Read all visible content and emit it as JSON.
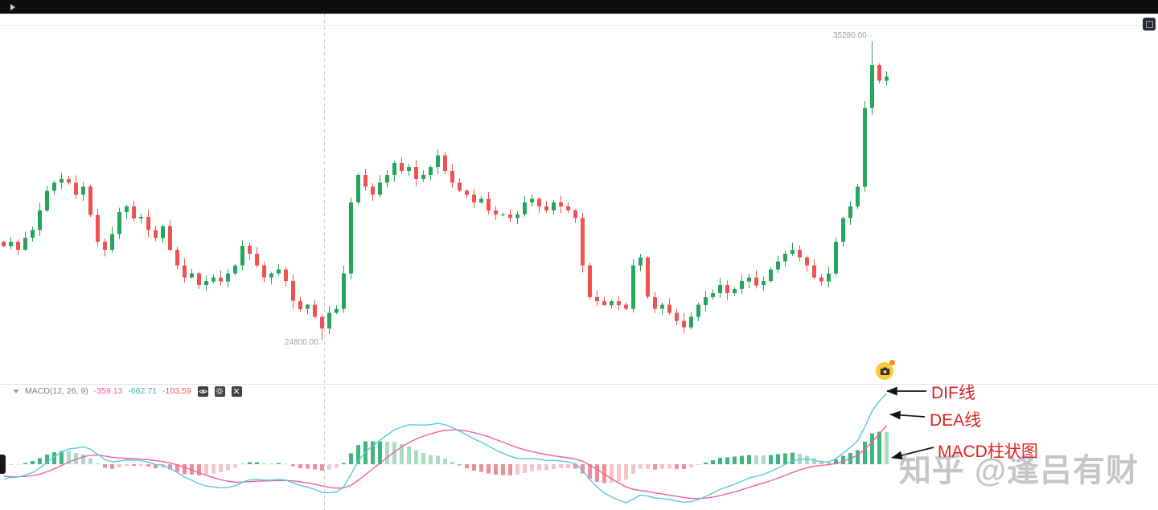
{
  "macd_pane": {
    "title": "MACD(12, 26, 9)",
    "values": [
      {
        "text": "-359.13",
        "color": "#e85aa0"
      },
      {
        "text": "-662.71",
        "color": "#2fb3a8"
      },
      {
        "text": "-103.59",
        "color": "#ef5350"
      }
    ],
    "icons": [
      "eye-icon",
      "gear-icon",
      "close-icon"
    ]
  },
  "annotations": {
    "dif_label": "DIF线",
    "dea_label": "DEA线",
    "hist_label": "MACD柱状图",
    "text_color": "#dd2121",
    "arrow_color": "#141414"
  },
  "watermark": {
    "text": "知乎 @逢吕有财"
  },
  "badges": {
    "camera": "snapshot-camera"
  },
  "chart_data": [
    {
      "type": "candlestick",
      "title": "",
      "x_unit": "bars",
      "ylim": [
        23500,
        35600
      ],
      "grid": false,
      "up_color": "#26a65c",
      "down_color": "#ef5350",
      "high_point": {
        "label": "35280.00",
        "value": 35280
      },
      "low_point": {
        "label": "24800.00",
        "value": 24800
      },
      "closes": [
        28100,
        28250,
        27970,
        28390,
        28660,
        29350,
        30040,
        30320,
        30450,
        30320,
        29900,
        30180,
        29200,
        28250,
        27970,
        28520,
        29290,
        29490,
        29075,
        29130,
        28660,
        28390,
        28800,
        27970,
        27420,
        27010,
        27150,
        26730,
        26870,
        27010,
        26870,
        27150,
        27420,
        28110,
        27830,
        27420,
        27010,
        27150,
        27290,
        26870,
        26180,
        25900,
        26040,
        25630,
        25210,
        25770,
        25900,
        27150,
        29630,
        30590,
        30180,
        29900,
        30320,
        30590,
        31010,
        30730,
        30870,
        30450,
        30590,
        30870,
        31280,
        30730,
        30320,
        30040,
        29900,
        29630,
        29760,
        29350,
        29210,
        29210,
        29080,
        29210,
        29630,
        29760,
        29490,
        29350,
        29630,
        29490,
        29350,
        29080,
        27420,
        26320,
        26180,
        26040,
        26180,
        26040,
        25900,
        27420,
        27700,
        26320,
        25900,
        26040,
        25770,
        25490,
        25260,
        25630,
        26040,
        26320,
        26460,
        26730,
        26460,
        26590,
        26870,
        27010,
        26730,
        26870,
        27290,
        27560,
        27830,
        27970,
        27700,
        27420,
        27010,
        26870,
        27150,
        28250,
        29080,
        29490,
        30180,
        32940,
        34450,
        33900,
        34040
      ]
    },
    {
      "type": "macd",
      "derived_from": "chart_data.0.closes",
      "params": {
        "fast": 12,
        "slow": 26,
        "signal": 9
      },
      "readout": {
        "value1": -359.13,
        "value2": -662.71,
        "value3": -103.59
      },
      "legend": {
        "dif": "DIF线",
        "dea": "DEA线",
        "histogram": "MACD柱状图"
      },
      "colors": {
        "dif_line": "#59c9dc",
        "dea_line": "#f0609e",
        "hist_grow_above": "#3db67f",
        "hist_fall_above": "#a9dcc3",
        "hist_grow_below": "#f6c3c9",
        "hist_fall_below": "#ef8e96"
      }
    }
  ]
}
